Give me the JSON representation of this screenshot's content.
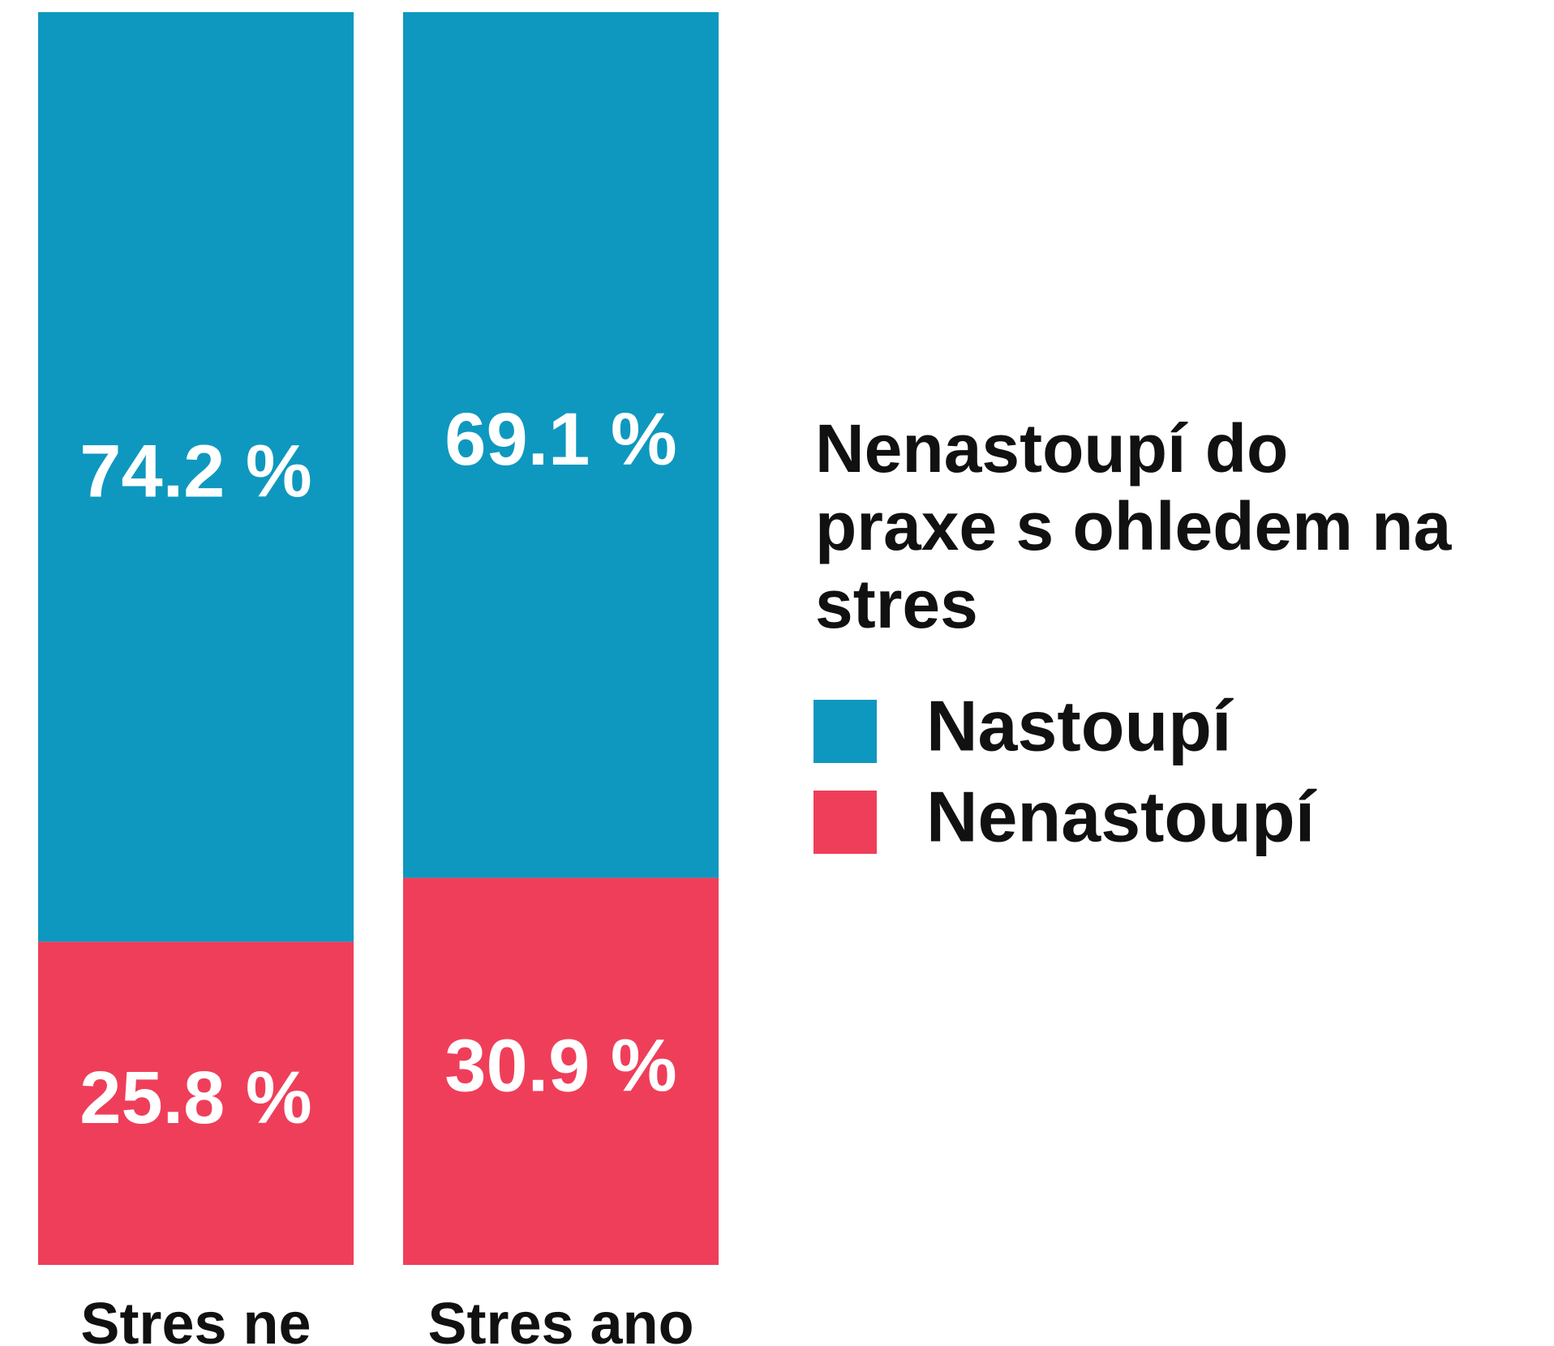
{
  "chart_data": {
    "type": "stacked_bar",
    "legend_title": "Nenastoupí do praxe s ohledem na stres",
    "categories": [
      "Stres ne",
      "Stres ano"
    ],
    "series": [
      {
        "name": "Nastoupí",
        "color": "#0e98bf",
        "values": [
          74.2,
          69.1
        ],
        "value_labels": [
          "74.2 %",
          "69.1 %"
        ]
      },
      {
        "name": "Nenastoupí",
        "color": "#ef3e5a",
        "values": [
          25.8,
          30.9
        ],
        "value_labels": [
          "25.8 %",
          "30.9 %"
        ]
      }
    ],
    "ylim": [
      0,
      100
    ],
    "legend": "right"
  }
}
